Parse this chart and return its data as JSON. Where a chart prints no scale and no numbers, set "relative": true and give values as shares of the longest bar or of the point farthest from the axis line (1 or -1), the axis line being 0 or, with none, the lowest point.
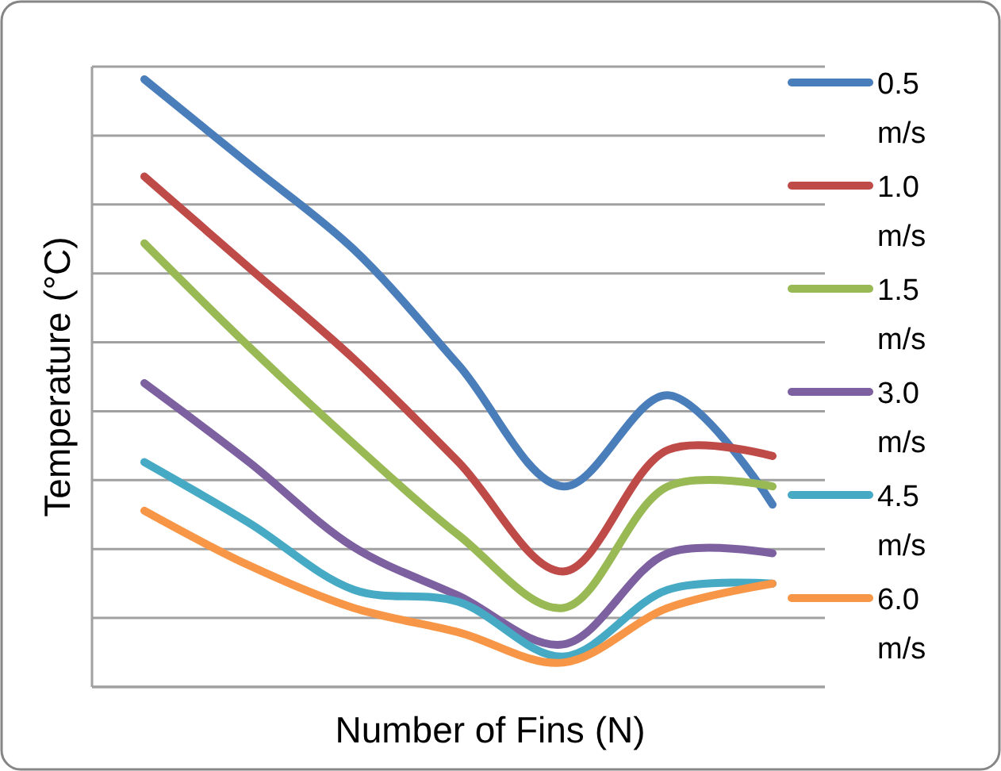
{
  "chart_data": {
    "type": "line",
    "relative": true,
    "xlabel": "Number of Fins (N)",
    "ylabel": "Temperature (°C)",
    "categories": [
      null,
      null,
      null,
      null,
      null,
      null,
      null
    ],
    "grid": "y",
    "legend": "right",
    "marker": "none",
    "line_style": "solid",
    "series": [
      {
        "name": "0.5 m/s",
        "color": "#4a7ebb",
        "values": [
          1.0,
          0.86,
          0.72,
          0.53,
          0.33,
          0.48,
          0.3
        ]
      },
      {
        "name": "1.0 m/s",
        "color": "#be4b48",
        "values": [
          0.84,
          0.69,
          0.54,
          0.37,
          0.19,
          0.39,
          0.38
        ]
      },
      {
        "name": "1.5 m/s",
        "color": "#98b954",
        "values": [
          0.73,
          0.56,
          0.4,
          0.25,
          0.13,
          0.33,
          0.33
        ]
      },
      {
        "name": "3.0 m/s",
        "color": "#7d60a0",
        "values": [
          0.5,
          0.37,
          0.23,
          0.15,
          0.07,
          0.22,
          0.22
        ]
      },
      {
        "name": "4.5 m/s",
        "color": "#46aac5",
        "values": [
          0.37,
          0.27,
          0.16,
          0.14,
          0.05,
          0.16,
          0.17
        ]
      },
      {
        "name": "6.0 m/s",
        "color": "#f79646",
        "values": [
          0.29,
          0.2,
          0.13,
          0.09,
          0.04,
          0.13,
          0.17
        ]
      }
    ]
  }
}
